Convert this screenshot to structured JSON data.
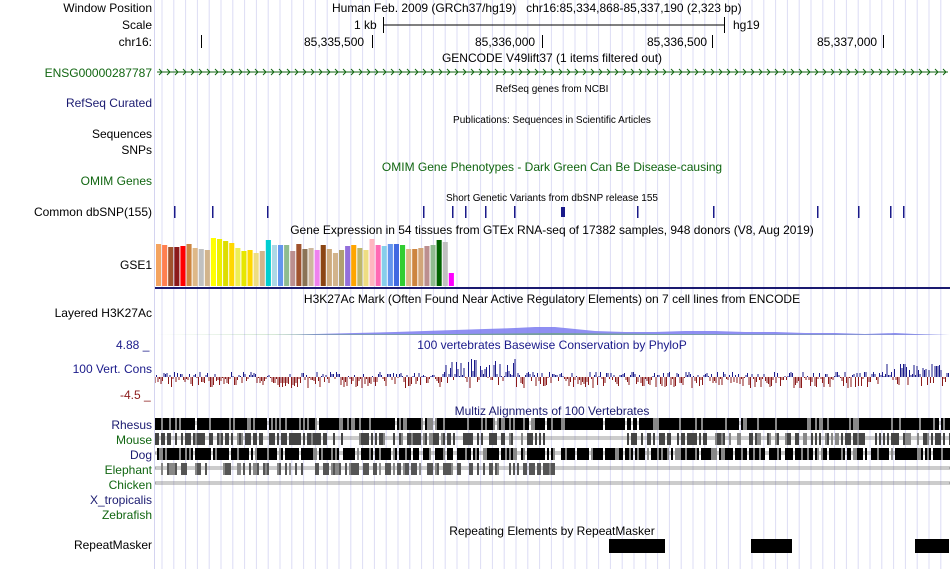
{
  "header": {
    "window_position_label": "Window Position",
    "window_position_value": "Human Feb. 2009 (GRCh37/hg19)   chr16:85,334,868-85,337,190 (2,323 bp)",
    "scale_label": "Scale",
    "scale_value": "1 kb",
    "scale_db": "hg19",
    "chrom_label": "chr16:",
    "ticks": [
      "85,335,500",
      "85,336,000",
      "85,336,500",
      "85,337,000"
    ]
  },
  "tracks": {
    "gencode": {
      "title": "GENCODE V49lift37 (1 items filtered out)",
      "label": "ENSG00000287787"
    },
    "refseq": {
      "title": "RefSeq genes from NCBI",
      "label": "RefSeq Curated"
    },
    "publications": {
      "title": "Publications: Sequences in Scientific Articles",
      "label_sequences": "Sequences",
      "label_snps": "SNPs"
    },
    "omim": {
      "title": "OMIM Gene Phenotypes - Dark Green Can Be Disease-causing",
      "label": "OMIM Genes"
    },
    "dbsnp": {
      "title": "Short Genetic Variants from dbSNP release 155",
      "label": "Common dbSNP(155)"
    },
    "gtex": {
      "title": "Gene Expression in 54 tissues from GTEx RNA-seq of 17382 samples, 948 donors (V8, Aug 2019)",
      "label": "GSE1"
    },
    "h3k27ac": {
      "title": "H3K27Ac Mark (Often Found Near Active Regulatory Elements) on 7 cell lines from ENCODE",
      "label": "Layered H3K27Ac"
    },
    "cons": {
      "title": "100 vertebrates Basewise Conservation by PhyloP",
      "label": "100 Vert. Cons",
      "max": "4.88 _",
      "min": "-4.5 _"
    },
    "multiz": {
      "title": "Multiz Alignments of 100 Vertebrates",
      "species": [
        {
          "name": "Rhesus",
          "color": "#1a1a70"
        },
        {
          "name": "Mouse",
          "color": "#116611"
        },
        {
          "name": "Dog",
          "color": "#1a1a70"
        },
        {
          "name": "Elephant",
          "color": "#116611"
        },
        {
          "name": "Chicken",
          "color": "#116611"
        },
        {
          "name": "X_tropicalis",
          "color": "#1a1a70"
        },
        {
          "name": "Zebrafish",
          "color": "#116611"
        }
      ]
    },
    "repeatmasker": {
      "title": "Repeating Elements by RepeatMasker",
      "label": "RepeatMasker"
    }
  },
  "colors": {
    "navy": "#1a1a70",
    "green": "#116611",
    "cons_positive": "#1a1a8a",
    "cons_negative": "#8b1a1a",
    "h3k27ac": "#7b7bf0"
  },
  "gtex_bar_colors": [
    "#f4a460",
    "#ff7f50",
    "#a0522d",
    "#8b1a1a",
    "#ff0000",
    "#cd853f",
    "#deb887",
    "#c0c0c0",
    "#d2b48c",
    "#ffff00",
    "#eeee00",
    "#dddd00",
    "#ffd700",
    "#eeee55",
    "#e6e600",
    "#ffd700",
    "#eedd82",
    "#d2b48c",
    "#00ced1",
    "#add8e6",
    "#6495ed",
    "#8fbc8f",
    "#bc8f8f",
    "#a0522d",
    "#8b7355",
    "#cdb79e",
    "#ee82ee",
    "#8b4513",
    "#cdaa7d",
    "#d2b48c",
    "#b0a070",
    "#9370db",
    "#ffa500",
    "#bdb76b",
    "#eedd82",
    "#ffb6c1",
    "#ff69b4",
    "#87ceeb",
    "#6495ed",
    "#4169e1",
    "#32cd32",
    "#deb887",
    "#cd853f",
    "#d2a679",
    "#bc8f8f",
    "#8fbc8f",
    "#006400",
    "#c0c0c0",
    "#ff00ff"
  ],
  "gtex_bar_heights": [
    0.88,
    0.85,
    0.82,
    0.82,
    0.84,
    0.88,
    0.8,
    0.78,
    0.76,
    1.0,
    0.98,
    0.93,
    0.9,
    0.8,
    0.72,
    0.76,
    0.68,
    0.72,
    0.96,
    0.85,
    0.85,
    0.85,
    0.72,
    0.88,
    0.78,
    0.8,
    0.76,
    0.85,
    0.78,
    0.68,
    0.74,
    0.84,
    0.86,
    0.8,
    0.76,
    0.98,
    0.86,
    0.84,
    0.88,
    0.88,
    0.86,
    0.78,
    0.78,
    0.8,
    0.84,
    0.86,
    0.96,
    0.92,
    0.28
  ]
}
